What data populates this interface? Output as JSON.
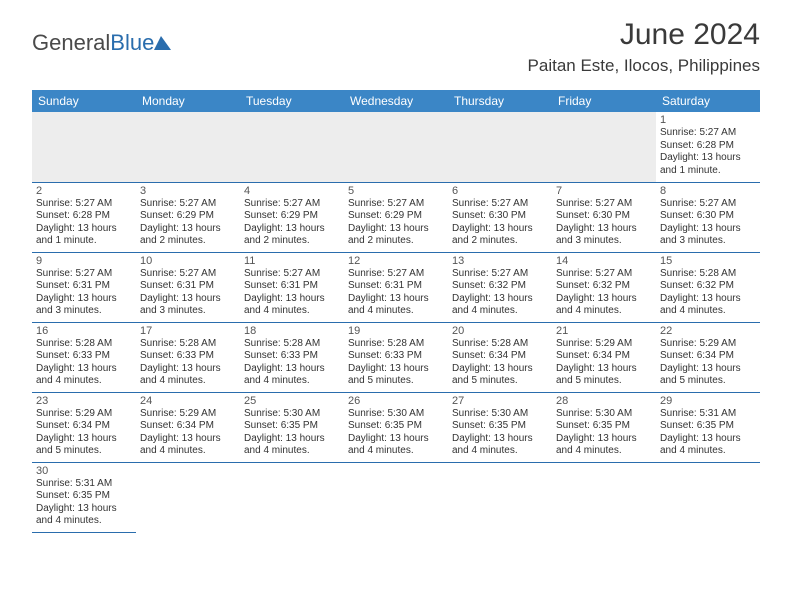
{
  "brand": {
    "part1": "General",
    "part2": "Blue"
  },
  "title": "June 2024",
  "location": "Paitan Este, Ilocos, Philippines",
  "day_headers": [
    "Sunday",
    "Monday",
    "Tuesday",
    "Wednesday",
    "Thursday",
    "Friday",
    "Saturday"
  ],
  "colors": {
    "header_bg": "#3b86c6",
    "header_text": "#ffffff",
    "row_divider": "#2a6dad",
    "empty_cell_bg": "#ededed",
    "text": "#333333",
    "brand_gray": "#4a4a4a",
    "brand_blue": "#2a6dad"
  },
  "weeks": [
    [
      null,
      null,
      null,
      null,
      null,
      null,
      {
        "n": "1",
        "sr": "Sunrise: 5:27 AM",
        "ss": "Sunset: 6:28 PM",
        "d1": "Daylight: 13 hours",
        "d2": "and 1 minute."
      }
    ],
    [
      {
        "n": "2",
        "sr": "Sunrise: 5:27 AM",
        "ss": "Sunset: 6:28 PM",
        "d1": "Daylight: 13 hours",
        "d2": "and 1 minute."
      },
      {
        "n": "3",
        "sr": "Sunrise: 5:27 AM",
        "ss": "Sunset: 6:29 PM",
        "d1": "Daylight: 13 hours",
        "d2": "and 2 minutes."
      },
      {
        "n": "4",
        "sr": "Sunrise: 5:27 AM",
        "ss": "Sunset: 6:29 PM",
        "d1": "Daylight: 13 hours",
        "d2": "and 2 minutes."
      },
      {
        "n": "5",
        "sr": "Sunrise: 5:27 AM",
        "ss": "Sunset: 6:29 PM",
        "d1": "Daylight: 13 hours",
        "d2": "and 2 minutes."
      },
      {
        "n": "6",
        "sr": "Sunrise: 5:27 AM",
        "ss": "Sunset: 6:30 PM",
        "d1": "Daylight: 13 hours",
        "d2": "and 2 minutes."
      },
      {
        "n": "7",
        "sr": "Sunrise: 5:27 AM",
        "ss": "Sunset: 6:30 PM",
        "d1": "Daylight: 13 hours",
        "d2": "and 3 minutes."
      },
      {
        "n": "8",
        "sr": "Sunrise: 5:27 AM",
        "ss": "Sunset: 6:30 PM",
        "d1": "Daylight: 13 hours",
        "d2": "and 3 minutes."
      }
    ],
    [
      {
        "n": "9",
        "sr": "Sunrise: 5:27 AM",
        "ss": "Sunset: 6:31 PM",
        "d1": "Daylight: 13 hours",
        "d2": "and 3 minutes."
      },
      {
        "n": "10",
        "sr": "Sunrise: 5:27 AM",
        "ss": "Sunset: 6:31 PM",
        "d1": "Daylight: 13 hours",
        "d2": "and 3 minutes."
      },
      {
        "n": "11",
        "sr": "Sunrise: 5:27 AM",
        "ss": "Sunset: 6:31 PM",
        "d1": "Daylight: 13 hours",
        "d2": "and 4 minutes."
      },
      {
        "n": "12",
        "sr": "Sunrise: 5:27 AM",
        "ss": "Sunset: 6:31 PM",
        "d1": "Daylight: 13 hours",
        "d2": "and 4 minutes."
      },
      {
        "n": "13",
        "sr": "Sunrise: 5:27 AM",
        "ss": "Sunset: 6:32 PM",
        "d1": "Daylight: 13 hours",
        "d2": "and 4 minutes."
      },
      {
        "n": "14",
        "sr": "Sunrise: 5:27 AM",
        "ss": "Sunset: 6:32 PM",
        "d1": "Daylight: 13 hours",
        "d2": "and 4 minutes."
      },
      {
        "n": "15",
        "sr": "Sunrise: 5:28 AM",
        "ss": "Sunset: 6:32 PM",
        "d1": "Daylight: 13 hours",
        "d2": "and 4 minutes."
      }
    ],
    [
      {
        "n": "16",
        "sr": "Sunrise: 5:28 AM",
        "ss": "Sunset: 6:33 PM",
        "d1": "Daylight: 13 hours",
        "d2": "and 4 minutes."
      },
      {
        "n": "17",
        "sr": "Sunrise: 5:28 AM",
        "ss": "Sunset: 6:33 PM",
        "d1": "Daylight: 13 hours",
        "d2": "and 4 minutes."
      },
      {
        "n": "18",
        "sr": "Sunrise: 5:28 AM",
        "ss": "Sunset: 6:33 PM",
        "d1": "Daylight: 13 hours",
        "d2": "and 4 minutes."
      },
      {
        "n": "19",
        "sr": "Sunrise: 5:28 AM",
        "ss": "Sunset: 6:33 PM",
        "d1": "Daylight: 13 hours",
        "d2": "and 5 minutes."
      },
      {
        "n": "20",
        "sr": "Sunrise: 5:28 AM",
        "ss": "Sunset: 6:34 PM",
        "d1": "Daylight: 13 hours",
        "d2": "and 5 minutes."
      },
      {
        "n": "21",
        "sr": "Sunrise: 5:29 AM",
        "ss": "Sunset: 6:34 PM",
        "d1": "Daylight: 13 hours",
        "d2": "and 5 minutes."
      },
      {
        "n": "22",
        "sr": "Sunrise: 5:29 AM",
        "ss": "Sunset: 6:34 PM",
        "d1": "Daylight: 13 hours",
        "d2": "and 5 minutes."
      }
    ],
    [
      {
        "n": "23",
        "sr": "Sunrise: 5:29 AM",
        "ss": "Sunset: 6:34 PM",
        "d1": "Daylight: 13 hours",
        "d2": "and 5 minutes."
      },
      {
        "n": "24",
        "sr": "Sunrise: 5:29 AM",
        "ss": "Sunset: 6:34 PM",
        "d1": "Daylight: 13 hours",
        "d2": "and 4 minutes."
      },
      {
        "n": "25",
        "sr": "Sunrise: 5:30 AM",
        "ss": "Sunset: 6:35 PM",
        "d1": "Daylight: 13 hours",
        "d2": "and 4 minutes."
      },
      {
        "n": "26",
        "sr": "Sunrise: 5:30 AM",
        "ss": "Sunset: 6:35 PM",
        "d1": "Daylight: 13 hours",
        "d2": "and 4 minutes."
      },
      {
        "n": "27",
        "sr": "Sunrise: 5:30 AM",
        "ss": "Sunset: 6:35 PM",
        "d1": "Daylight: 13 hours",
        "d2": "and 4 minutes."
      },
      {
        "n": "28",
        "sr": "Sunrise: 5:30 AM",
        "ss": "Sunset: 6:35 PM",
        "d1": "Daylight: 13 hours",
        "d2": "and 4 minutes."
      },
      {
        "n": "29",
        "sr": "Sunrise: 5:31 AM",
        "ss": "Sunset: 6:35 PM",
        "d1": "Daylight: 13 hours",
        "d2": "and 4 minutes."
      }
    ],
    [
      {
        "n": "30",
        "sr": "Sunrise: 5:31 AM",
        "ss": "Sunset: 6:35 PM",
        "d1": "Daylight: 13 hours",
        "d2": "and 4 minutes."
      },
      null,
      null,
      null,
      null,
      null,
      null
    ]
  ]
}
